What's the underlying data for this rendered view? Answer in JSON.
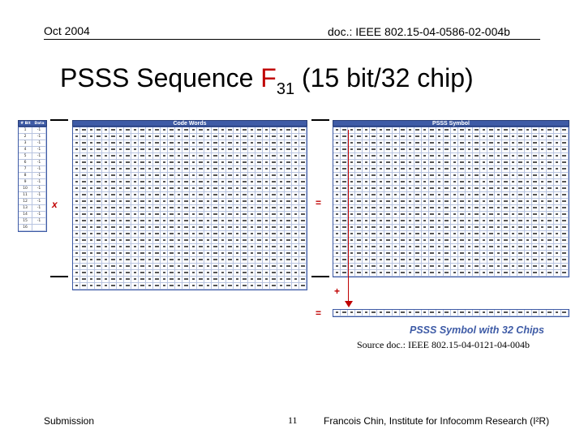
{
  "header": {
    "date": "Oct 2004",
    "doc_id": "doc.: IEEE 802.15-04-0586-02-004b"
  },
  "title": {
    "prefix": "PSSS Sequence ",
    "accent": "F",
    "subscript": "31",
    "suffix": " (15 bit/32 chip)"
  },
  "figure": {
    "data_header": [
      "# Bit",
      "Data"
    ],
    "code_words_header": "Code Words",
    "pss_symbol_header": "PSSS Symbol",
    "operators": {
      "multiply": "x",
      "equals": "=",
      "plus": "+"
    },
    "caption": "PSSS Symbol with 32 Chips",
    "data_rows": [
      [
        "1",
        "-1"
      ],
      [
        "2",
        "-1"
      ],
      [
        "3",
        "-1"
      ],
      [
        "4",
        "-1"
      ],
      [
        "5",
        "-1"
      ],
      [
        "6",
        "-1"
      ],
      [
        "7",
        "-1"
      ],
      [
        "8",
        "-1"
      ],
      [
        "9",
        "-1"
      ],
      [
        "10",
        "-1"
      ],
      [
        "11",
        "-1"
      ],
      [
        "12",
        "-1"
      ],
      [
        "13",
        "-1"
      ],
      [
        "14",
        "-1"
      ],
      [
        "15",
        "-1"
      ],
      [
        "16",
        ""
      ]
    ]
  },
  "source": "Source doc.: IEEE 802.15-04-0121-04-004b",
  "footer": {
    "left": "Submission",
    "page": "11",
    "right": "Francois Chin, Institute for Infocomm Research (I²R)"
  }
}
